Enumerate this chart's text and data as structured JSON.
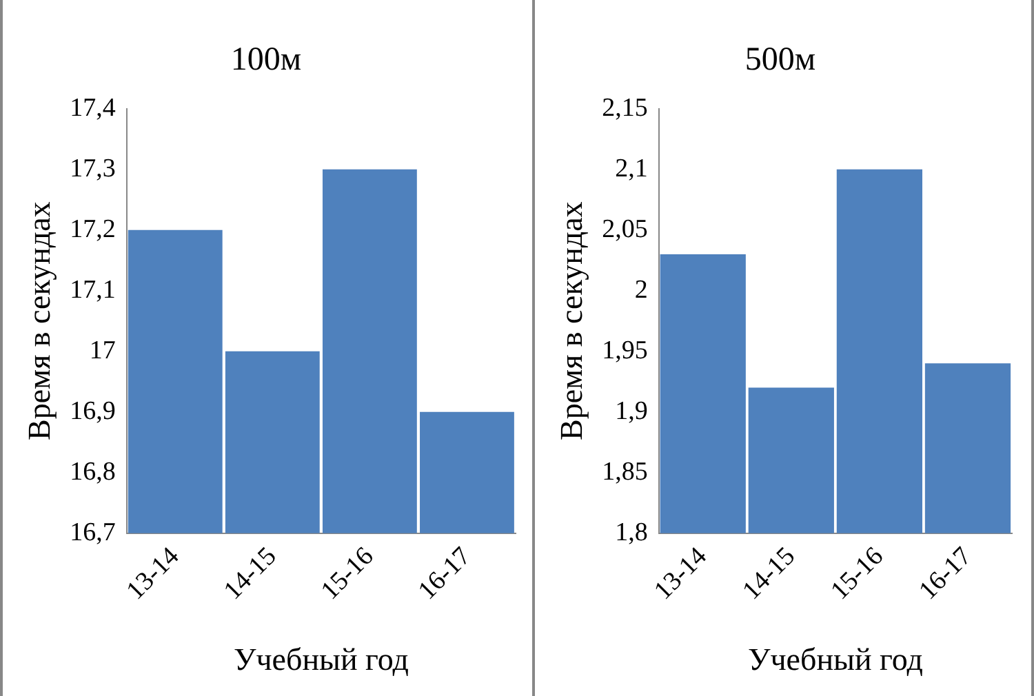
{
  "chart_data": [
    {
      "type": "bar",
      "title": "100м",
      "xlabel": "Учебный год",
      "ylabel": "Время в секундах",
      "categories": [
        "13-14",
        "14-15",
        "15-16",
        "16-17"
      ],
      "values": [
        17.2,
        17.0,
        17.3,
        16.9
      ],
      "color": "#4f81bd",
      "ylim": [
        16.7,
        17.4
      ],
      "yticks": [
        {
          "value": 16.7,
          "label": "16,7"
        },
        {
          "value": 16.8,
          "label": "16,8"
        },
        {
          "value": 16.9,
          "label": "16,9"
        },
        {
          "value": 17,
          "label": "17"
        },
        {
          "value": 17.1,
          "label": "17,1"
        },
        {
          "value": 17.2,
          "label": "17,2"
        },
        {
          "value": 17.3,
          "label": "17,3"
        },
        {
          "value": 17.4,
          "label": "17,4"
        }
      ]
    },
    {
      "type": "bar",
      "title": "500м",
      "xlabel": "Учебный год",
      "ylabel": "Время в секундах",
      "categories": [
        "13-14",
        "14-15",
        "15-16",
        "16-17"
      ],
      "values": [
        2.03,
        1.92,
        2.1,
        1.94
      ],
      "color": "#4f81bd",
      "ylim": [
        1.8,
        2.15
      ],
      "yticks": [
        {
          "value": 1.8,
          "label": "1,8"
        },
        {
          "value": 1.85,
          "label": "1,85"
        },
        {
          "value": 1.9,
          "label": "1,9"
        },
        {
          "value": 1.95,
          "label": "1,95"
        },
        {
          "value": 2,
          "label": "2"
        },
        {
          "value": 2.05,
          "label": "2,05"
        },
        {
          "value": 2.1,
          "label": "2,1"
        },
        {
          "value": 2.15,
          "label": "2,15"
        }
      ]
    }
  ]
}
